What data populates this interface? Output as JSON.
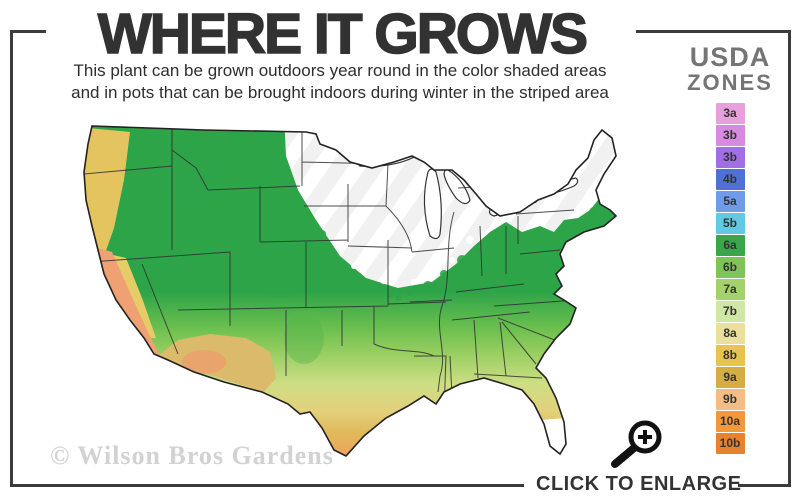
{
  "header": {
    "title": "WHERE IT GROWS",
    "subtitle_line1": "This plant can be grown outdoors year round in the color shaded areas",
    "subtitle_line2": "and in pots that can be brought indoors during winter in the striped area"
  },
  "legend": {
    "title_line1": "USDA",
    "title_line2": "ZONES",
    "zones": [
      {
        "label": "3a",
        "color": "#e6a0dc"
      },
      {
        "label": "3b",
        "color": "#d88ae0"
      },
      {
        "label": "3b",
        "color": "#a06fe6"
      },
      {
        "label": "4b",
        "color": "#4f71d6"
      },
      {
        "label": "5a",
        "color": "#6f9ce8"
      },
      {
        "label": "5b",
        "color": "#62c9e2"
      },
      {
        "label": "6a",
        "color": "#3aa54b"
      },
      {
        "label": "6b",
        "color": "#7fc35a"
      },
      {
        "label": "7a",
        "color": "#a4d26a"
      },
      {
        "label": "7b",
        "color": "#cfe6a4"
      },
      {
        "label": "8a",
        "color": "#eadf9d"
      },
      {
        "label": "8b",
        "color": "#e6c44f"
      },
      {
        "label": "9a",
        "color": "#d5ad45"
      },
      {
        "label": "9b",
        "color": "#f4bd86"
      },
      {
        "label": "10a",
        "color": "#f0993c"
      },
      {
        "label": "10b",
        "color": "#e8822e"
      }
    ]
  },
  "map": {
    "region": "contiguous United States",
    "shaded_palette": [
      "#2ea449",
      "#6abf4e",
      "#9ccf63",
      "#cdde85",
      "#e3d07a",
      "#e0b95b",
      "#eda55c",
      "#ee9850"
    ],
    "striped_area_color": "#f2f2f2",
    "coast_accent_colors": {
      "pacific_northwest": "#e4c45f",
      "california_coast": "#efa173",
      "desert_southwest": "#dcba6c"
    }
  },
  "footer": {
    "watermark": "© Wilson Bros Gardens",
    "enlarge_label": "CLICK TO ENLARGE",
    "enlarge_icon": "magnifier-plus-icon"
  },
  "colors": {
    "frame": "#3b3b3b",
    "title": "#323232",
    "subtitle": "#2e2e2e",
    "legend_heading": "#757575",
    "watermark": "#d2d2d2",
    "enlarge_text": "#333333"
  }
}
